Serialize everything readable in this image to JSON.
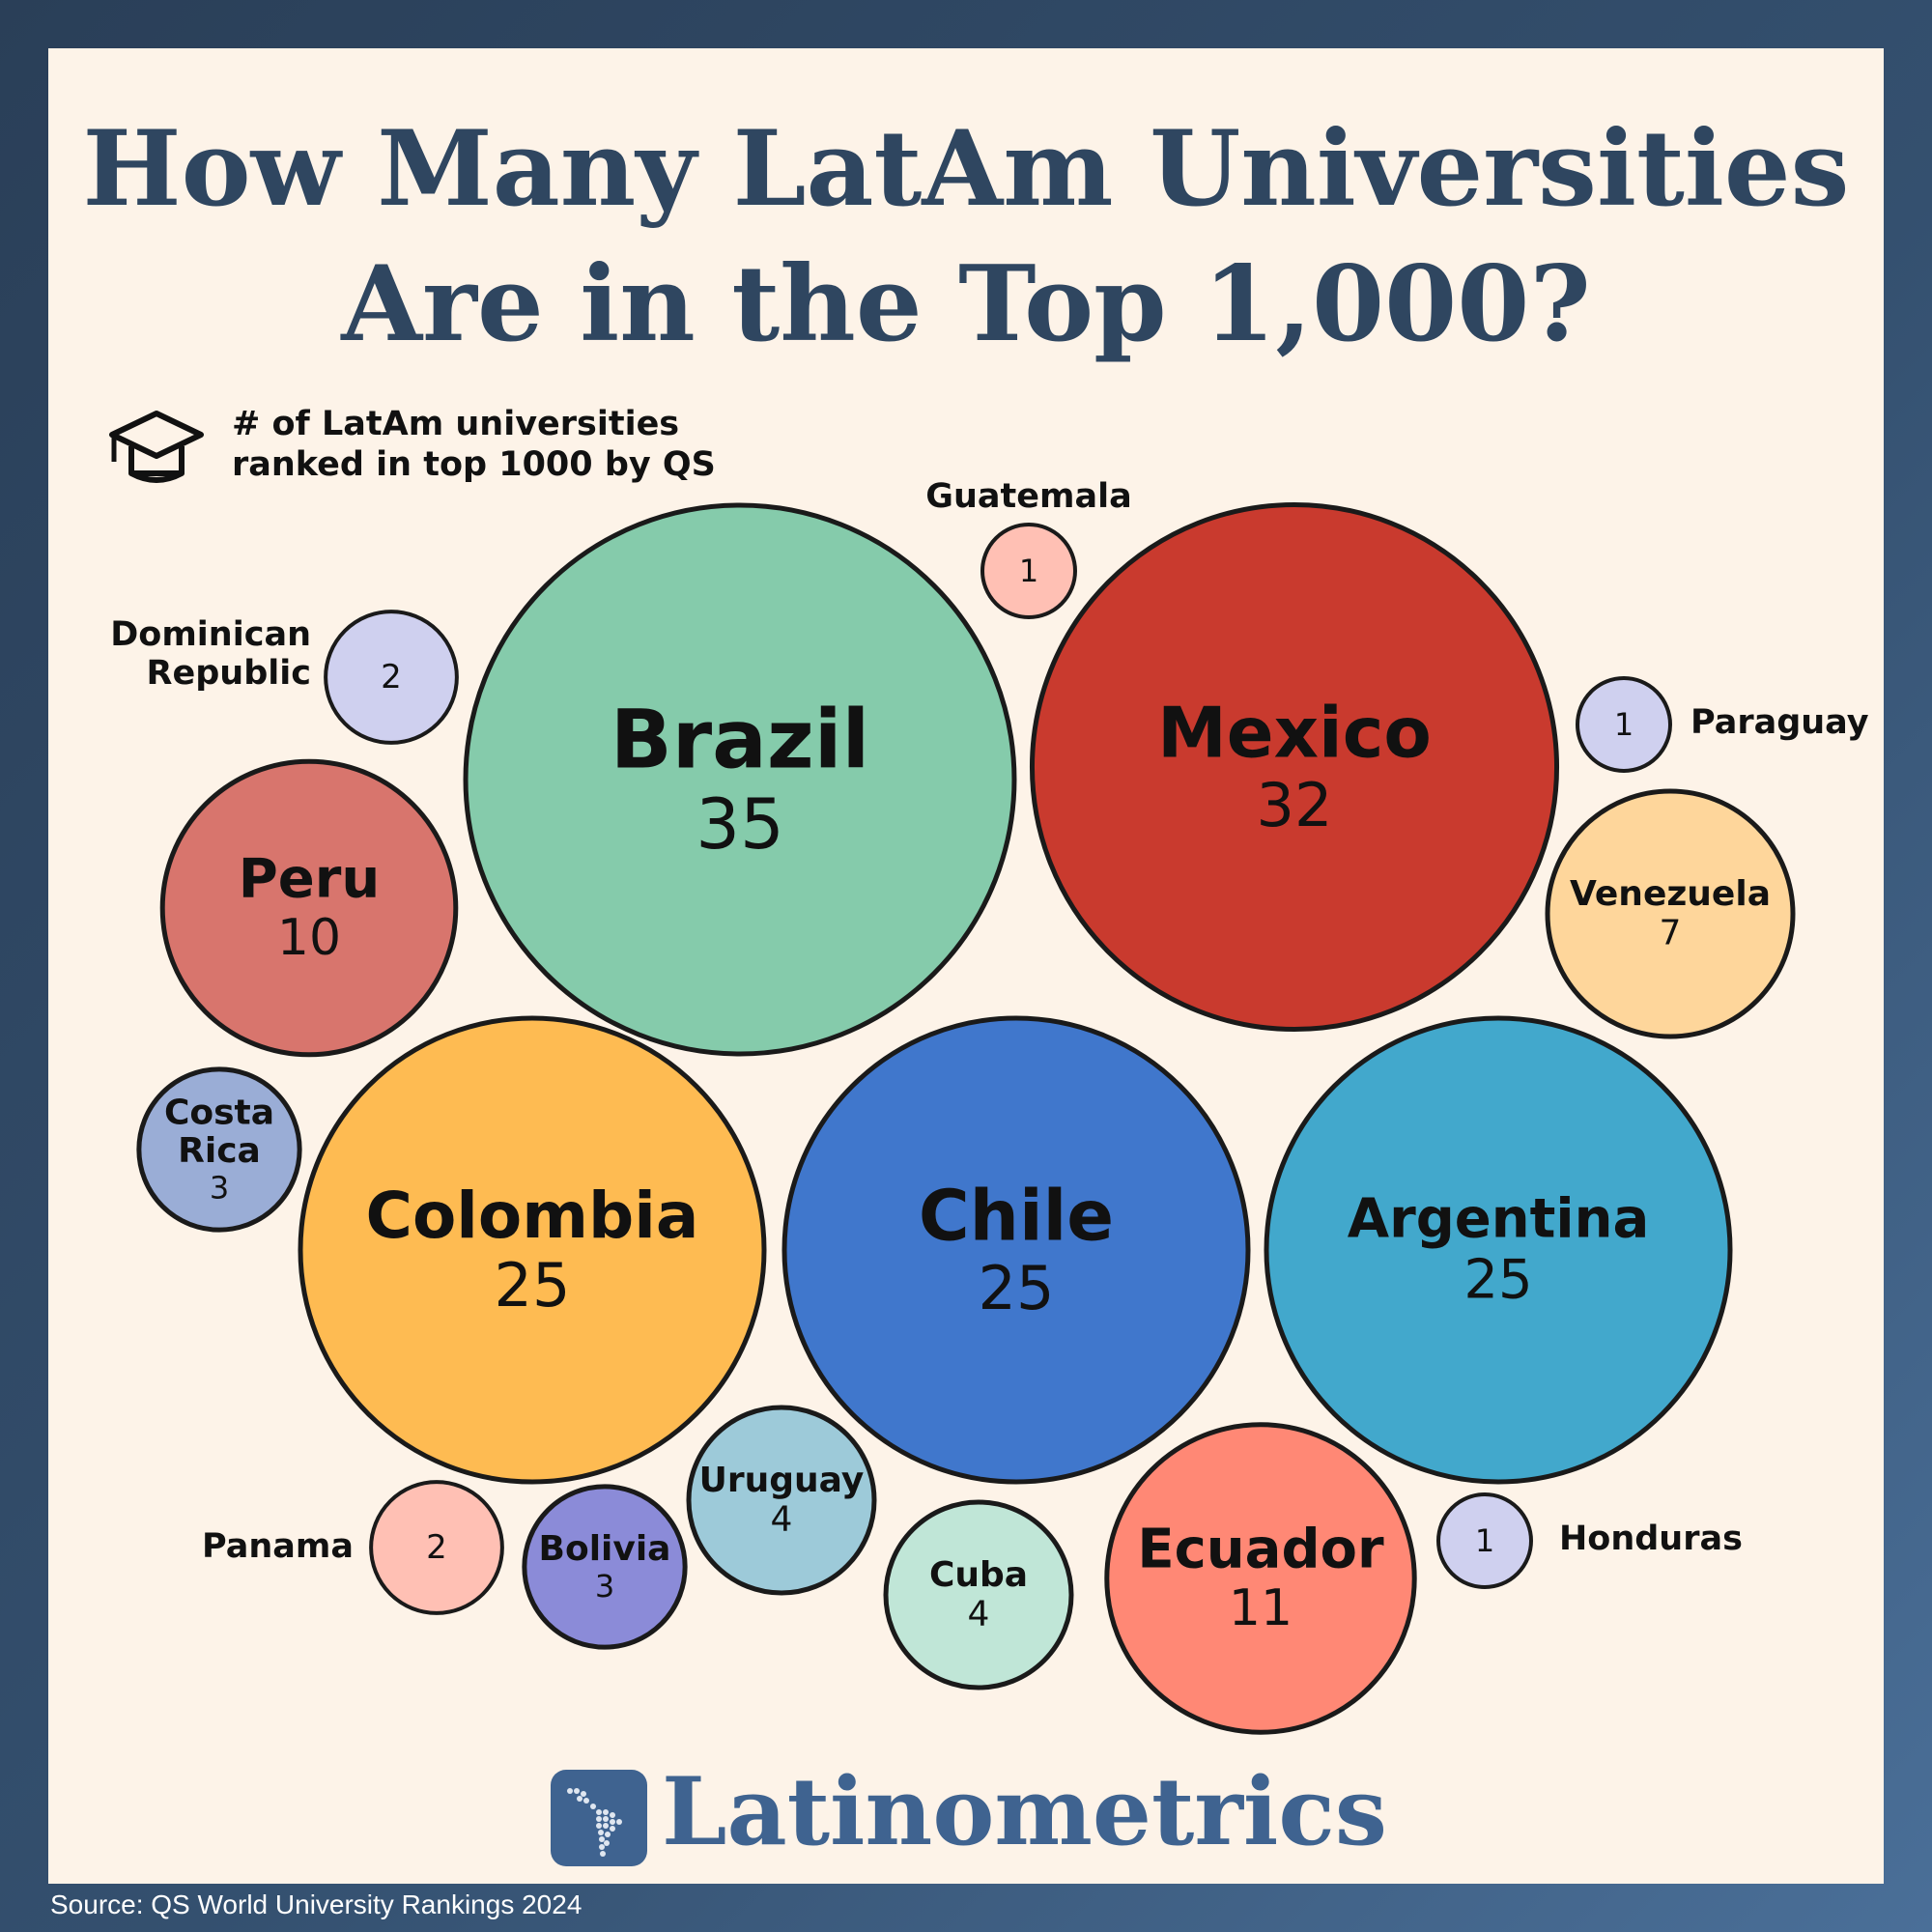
{
  "title": {
    "line1": "How Many LatAm Universities",
    "line2": "Are in the Top 1,000?"
  },
  "legend": {
    "icon": "graduation-cap-icon",
    "line1": "# of LatAm universities",
    "line2": "ranked in top 1000 by QS"
  },
  "chart_data": {
    "type": "bubble",
    "categories": [
      "Brazil",
      "Mexico",
      "Chile",
      "Colombia",
      "Argentina",
      "Ecuador",
      "Peru",
      "Venezuela",
      "Cuba",
      "Uruguay",
      "Costa Rica",
      "Bolivia",
      "Dominican Republic",
      "Panama",
      "Guatemala",
      "Paraguay",
      "Honduras"
    ],
    "values": [
      35,
      32,
      25,
      25,
      25,
      11,
      10,
      7,
      4,
      4,
      3,
      3,
      2,
      2,
      1,
      1,
      1
    ],
    "colors": {
      "Brazil": "#85cbab",
      "Mexico": "#c93a2e",
      "Chile": "#4077cc",
      "Colombia": "#febb52",
      "Argentina": "#42a8cc",
      "Ecuador": "#ff8875",
      "Peru": "#d8756d",
      "Venezuela": "#fed69b",
      "Cuba": "#c0e6d7",
      "Uruguay": "#9dcad9",
      "Costa Rica": "#9aadd6",
      "Bolivia": "#8b8bd8",
      "Dominican Republic": "#cfd0ef",
      "Panama": "#ffc0b4",
      "Guatemala": "#ffc0b4",
      "Paraguay": "#cfd0ef",
      "Honduras": "#cfd0ef"
    },
    "inside_labels": {
      "Costa Rica": [
        "Costa",
        "Rica"
      ]
    },
    "outside_labels": {
      "Dominican Republic": [
        "Dominican",
        "Republic"
      ],
      "Panama": [
        "Panama"
      ],
      "Guatemala": [
        "Guatemala"
      ],
      "Paraguay": [
        "Paraguay"
      ],
      "Honduras": [
        "Honduras"
      ]
    }
  },
  "brand": {
    "name": "Latinometrics",
    "logo_icon": "latam-map-icon"
  },
  "source": "Source: QS World University Rankings 2024"
}
